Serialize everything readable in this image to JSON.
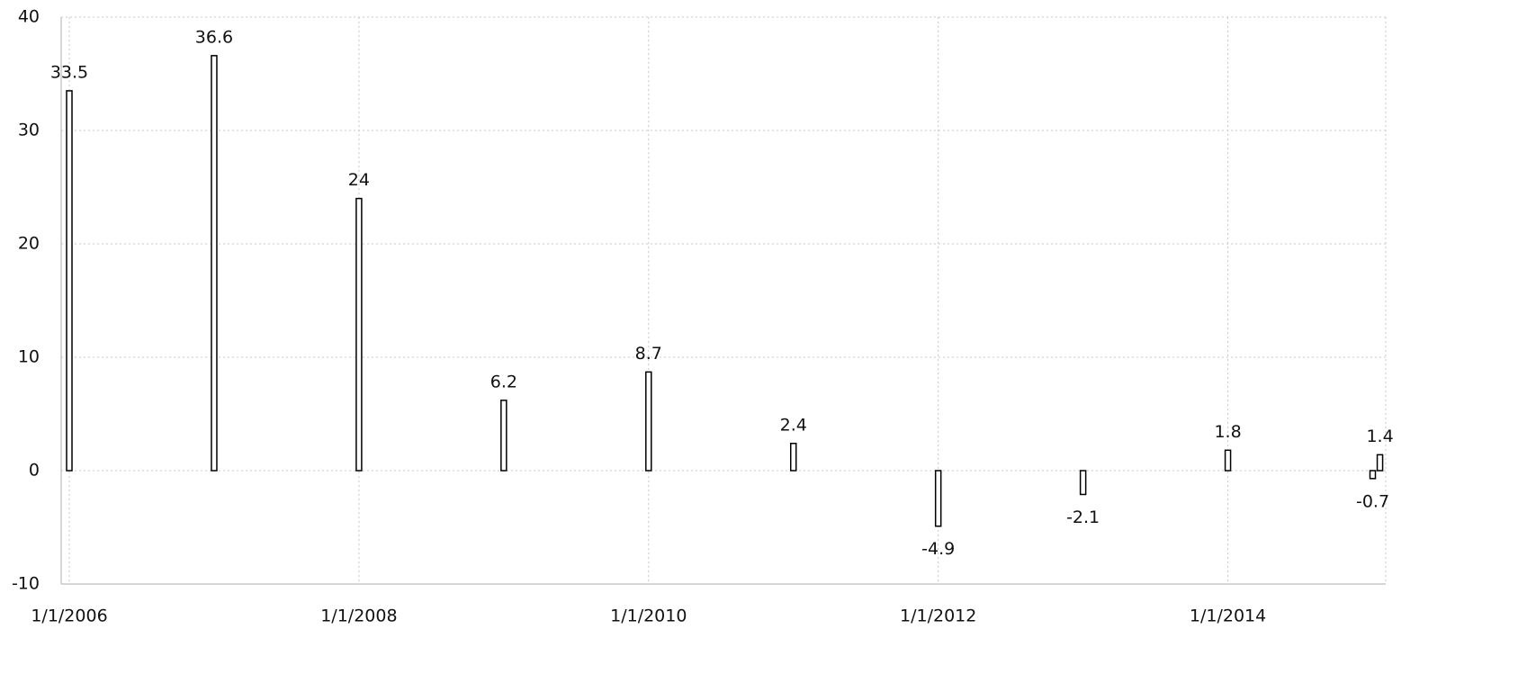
{
  "chart_data": {
    "type": "bar",
    "x": [
      2006,
      2007,
      2008,
      2009,
      2010,
      2011,
      2012,
      2013,
      2014,
      2015,
      2015.05
    ],
    "values": [
      33.5,
      36.6,
      24,
      6.2,
      8.7,
      2.4,
      -4.9,
      -2.1,
      1.8,
      -0.7,
      1.4
    ],
    "color": "#ffffff",
    "edge_color": "#000000",
    "xlim": [
      2005.944,
      2015.09
    ],
    "xticks": [
      {
        "value": 2006,
        "label": "1/1/2006"
      },
      {
        "value": 2008,
        "label": "1/1/2008"
      },
      {
        "value": 2010,
        "label": "1/1/2010"
      },
      {
        "value": 2012,
        "label": "1/1/2012"
      },
      {
        "value": 2014,
        "label": "1/1/2014"
      }
    ],
    "ylim": [
      -10,
      40
    ],
    "yticks": [
      -10,
      0,
      10,
      20,
      30,
      40
    ],
    "grid": true
  }
}
